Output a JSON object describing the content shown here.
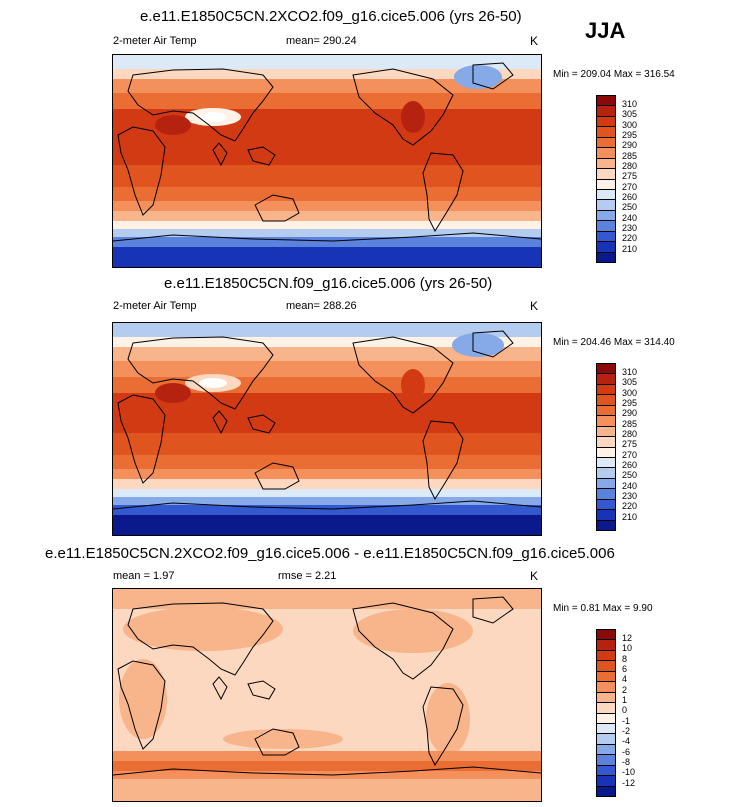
{
  "season": "JJA",
  "panels": [
    {
      "title": "e.e11.E1850C5CN.2XCO2.f09_g16.cice5.006 (yrs 26-50)",
      "variable": "2-meter Air Temp",
      "mean_text": "mean= 290.24",
      "unit": "K",
      "minmax": "Min = 209.04 Max = 316.54",
      "levels": [
        "310",
        "305",
        "300",
        "295",
        "290",
        "285",
        "280",
        "275",
        "270",
        "260",
        "250",
        "240",
        "230",
        "220",
        "210"
      ],
      "colors": [
        "#8a0a0a",
        "#b5220f",
        "#d23a14",
        "#e0541f",
        "#ea6d34",
        "#f3905c",
        "#f8b48b",
        "#fbd8bf",
        "#fdf2e5",
        "#dce9f7",
        "#b4ccf0",
        "#86a9e7",
        "#5b83dd",
        "#3358cf",
        "#1733b6",
        "#0a1a8c"
      ]
    },
    {
      "title": "e.e11.E1850C5CN.f09_g16.cice5.006 (yrs 26-50)",
      "variable": "2-meter Air Temp",
      "mean_text": "mean= 288.26",
      "unit": "K",
      "minmax": "Min = 204.46 Max = 314.40",
      "levels": [
        "310",
        "305",
        "300",
        "295",
        "290",
        "285",
        "280",
        "275",
        "270",
        "260",
        "250",
        "240",
        "230",
        "220",
        "210"
      ],
      "colors": [
        "#8a0a0a",
        "#b5220f",
        "#d23a14",
        "#e0541f",
        "#ea6d34",
        "#f3905c",
        "#f8b48b",
        "#fbd8bf",
        "#fdf2e5",
        "#dce9f7",
        "#b4ccf0",
        "#86a9e7",
        "#5b83dd",
        "#3358cf",
        "#1733b6",
        "#0a1a8c"
      ]
    },
    {
      "title": "e.e11.E1850C5CN.2XCO2.f09_g16.cice5.006 - e.e11.E1850C5CN.f09_g16.cice5.006",
      "mean_text": "mean =   1.97",
      "rmse_text": "rmse =   2.21",
      "unit": "K",
      "minmax": "Min =  0.81 Max =  9.90",
      "levels": [
        "12",
        "10",
        "8",
        "6",
        "4",
        "2",
        "1",
        "0",
        "-1",
        "-2",
        "-4",
        "-6",
        "-8",
        "-10",
        "-12"
      ],
      "colors": [
        "#8a0a0a",
        "#b5220f",
        "#d23a14",
        "#e0541f",
        "#ea6d34",
        "#f3905c",
        "#f8b48b",
        "#fbd8bf",
        "#fdf2e5",
        "#dce9f7",
        "#b4ccf0",
        "#86a9e7",
        "#5b83dd",
        "#3358cf",
        "#1733b6",
        "#0a1a8c"
      ]
    }
  ]
}
